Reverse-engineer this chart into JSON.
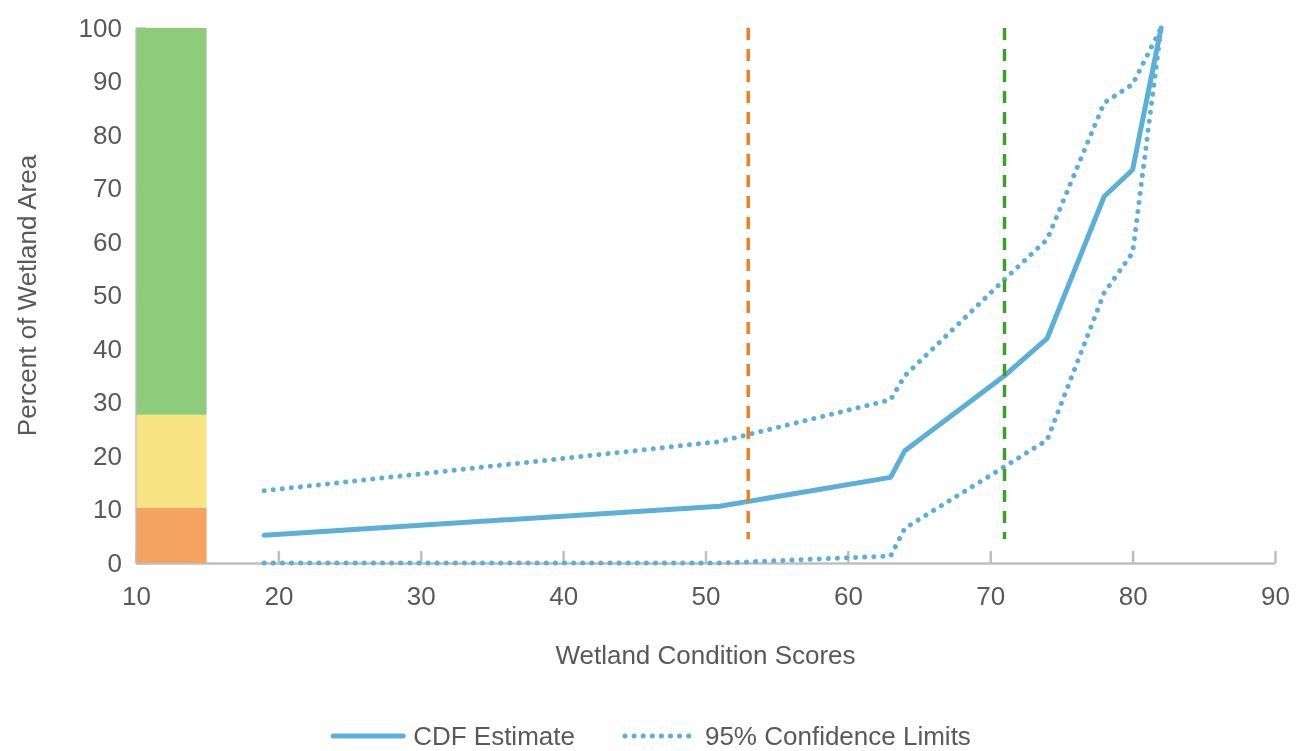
{
  "chart_data": {
    "type": "line",
    "xlabel": "Wetland Condition Scores",
    "ylabel": "Percent of Wetland Area",
    "xlim": [
      10,
      90
    ],
    "xticks": [
      10,
      20,
      30,
      40,
      50,
      60,
      70,
      80,
      90
    ],
    "ylim": [
      0,
      100
    ],
    "yticks": [
      0,
      10,
      20,
      30,
      40,
      50,
      60,
      70,
      80,
      90,
      100
    ],
    "grid": false,
    "legend": "bottom",
    "stacked": true,
    "series": [
      {
        "type": "bar",
        "x": [
          12.5
        ],
        "color": "#f4a361",
        "values": [
          10.3
        ]
      },
      {
        "type": "bar",
        "x": [
          12.5
        ],
        "color": "#f9e483",
        "values": [
          17.4
        ]
      },
      {
        "type": "bar",
        "x": [
          12.5
        ],
        "color": "#8ecb7b",
        "values": [
          72.3
        ]
      },
      {
        "name": "CDF Estimate",
        "color": "#5bafd9",
        "line_style": "solid",
        "x": [
          19,
          51,
          63,
          64,
          71,
          74,
          78,
          80,
          82
        ],
        "values": [
          5.2,
          10.6,
          16,
          21,
          35,
          42,
          68.5,
          73.5,
          100
        ]
      },
      {
        "name": "95% Confidence Limits",
        "color": "#5bafd9",
        "line_style": "dotted",
        "x": [
          19,
          51,
          63,
          64,
          71,
          74,
          78,
          80,
          82
        ],
        "values": [
          13.5,
          22.7,
          30.5,
          35,
          53,
          60.5,
          86,
          89.5,
          100
        ]
      },
      {
        "color": "#5bafd9",
        "line_style": "dotted",
        "x": [
          19,
          51,
          63,
          64,
          71,
          74,
          78,
          80,
          82
        ],
        "values": [
          0,
          0,
          1.3,
          6.5,
          18,
          23,
          50.5,
          58,
          100
        ]
      }
    ],
    "ref_lines": [
      {
        "axis": "x",
        "value": 53,
        "color": "#f07f1e",
        "line_style": "dashed"
      },
      {
        "axis": "x",
        "value": 71,
        "color": "#3aa02a",
        "line_style": "dashed"
      }
    ]
  }
}
